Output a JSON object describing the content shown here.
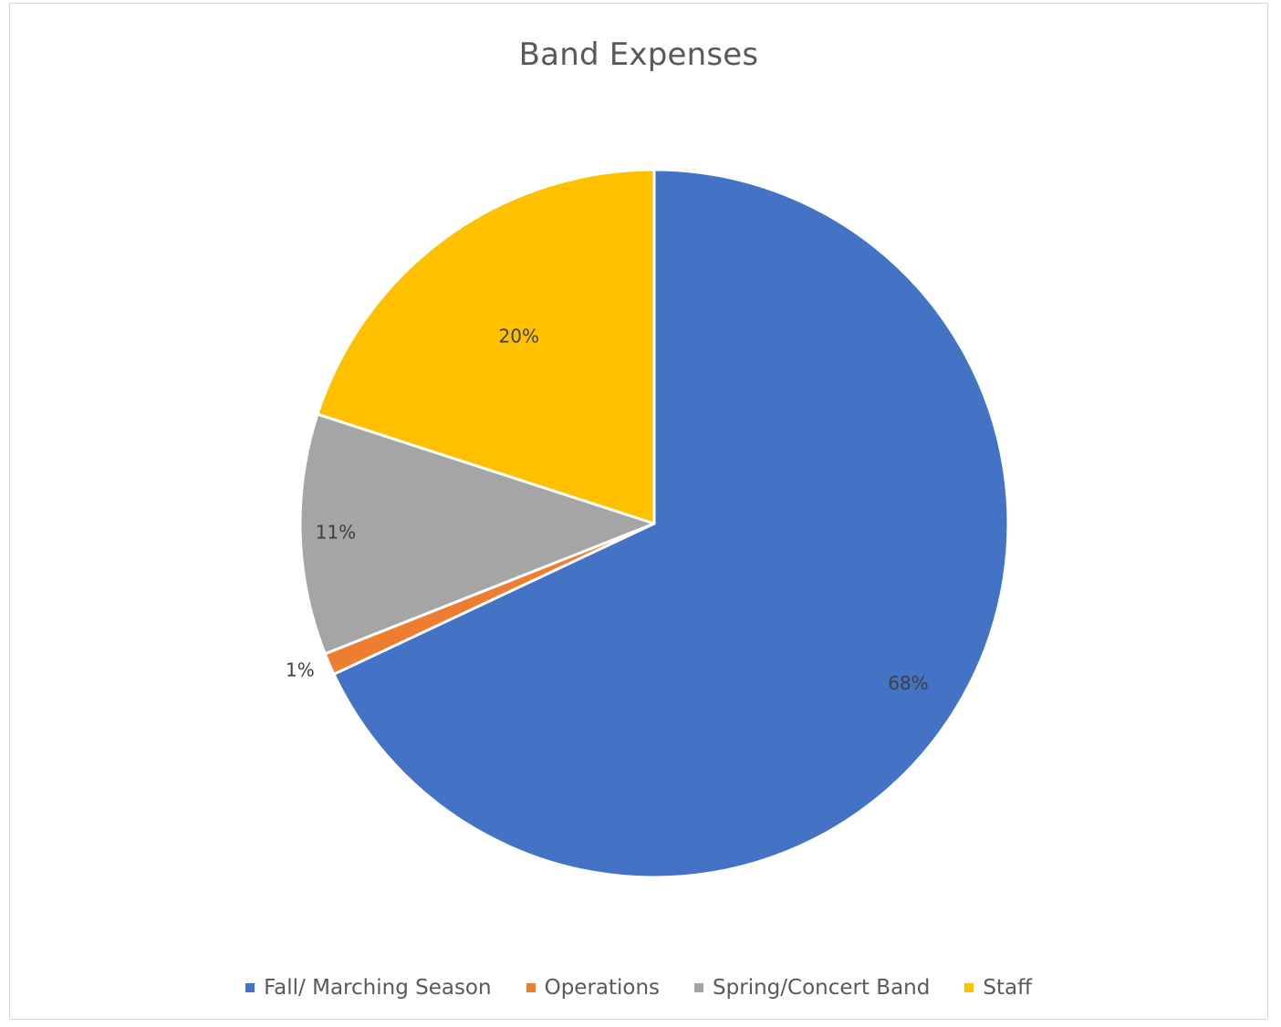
{
  "chart_data": {
    "type": "pie",
    "title": "Band Expenses",
    "categories": [
      "Fall/ Marching Season",
      "Operations",
      "Spring/Concert Band",
      "Staff"
    ],
    "values": [
      68,
      1,
      11,
      20
    ],
    "labels": [
      "68%",
      "1%",
      "11%",
      "20%"
    ],
    "colors": [
      "#4472C4",
      "#ED7D31",
      "#A5A5A5",
      "#FFC000"
    ],
    "legend_position": "bottom",
    "start_angle_deg": 0,
    "direction": "clockwise"
  }
}
